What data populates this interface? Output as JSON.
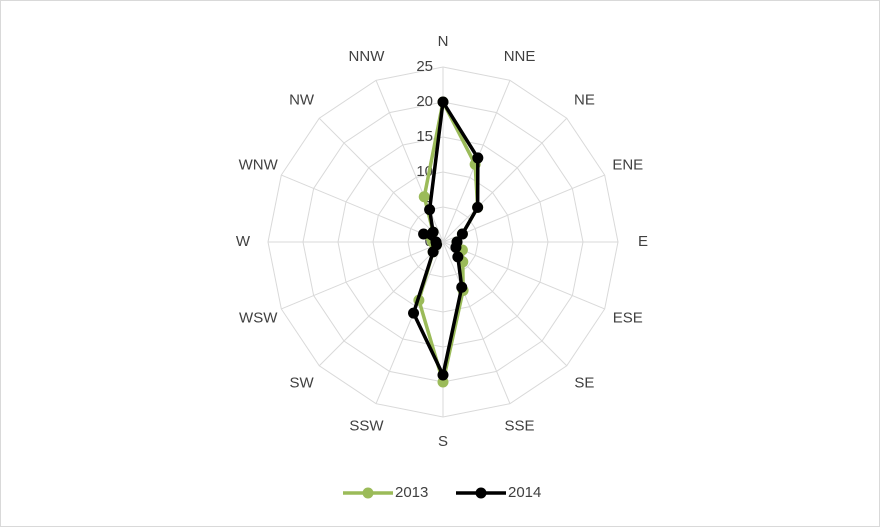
{
  "chart_data": {
    "type": "radar",
    "categories": [
      "N",
      "NNE",
      "NE",
      "ENE",
      "E",
      "ESE",
      "SE",
      "SSE",
      "S",
      "SSW",
      "SW",
      "WSW",
      "W",
      "WNW",
      "NW",
      "NNW"
    ],
    "series": [
      {
        "name": "2013",
        "color": "#9bbb59",
        "values": [
          20,
          12,
          7,
          3,
          2,
          3,
          4,
          7.5,
          20,
          9,
          2,
          1,
          1.5,
          2,
          2,
          7
        ]
      },
      {
        "name": "2014",
        "color": "#000000",
        "values": [
          20,
          13,
          7,
          3,
          2,
          2,
          3,
          7,
          19,
          11,
          2,
          1,
          1,
          3,
          2,
          5
        ]
      }
    ],
    "ylim": [
      0,
      25
    ],
    "yticks": [
      0,
      5,
      10,
      15,
      20,
      25
    ],
    "grid": true,
    "legend": "bottom"
  }
}
